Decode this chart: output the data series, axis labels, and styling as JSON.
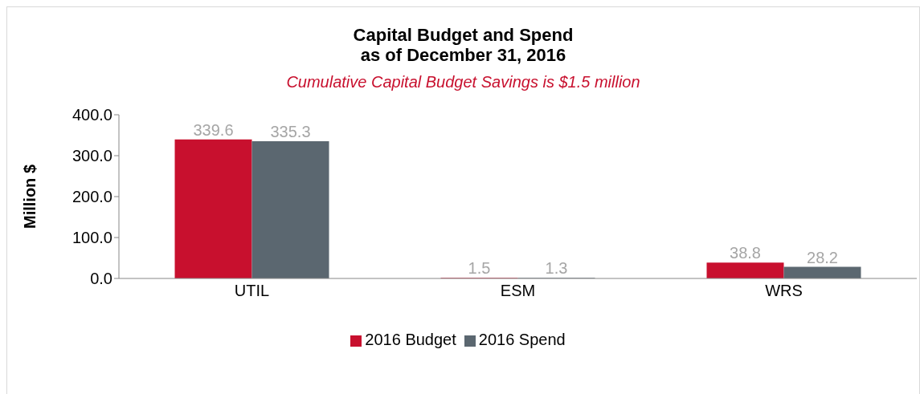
{
  "chart_data": {
    "type": "bar",
    "title": "Capital Budget and Spend\nas of December 31, 2016",
    "subtitle": "Cumulative Capital Budget Savings is $1.5 million",
    "ylabel": "Million $",
    "categories": [
      "UTIL",
      "ESM",
      "WRS"
    ],
    "series": [
      {
        "name": "2016 Budget",
        "color": "#c8102e",
        "values": [
          339.6,
          1.5,
          38.8
        ]
      },
      {
        "name": "2016 Spend",
        "color": "#5b6770",
        "values": [
          335.3,
          1.3,
          28.2
        ]
      }
    ],
    "ylim": [
      0,
      400
    ],
    "yticks": [
      {
        "value": 0,
        "label": "0.0"
      },
      {
        "value": 100,
        "label": "100.0"
      },
      {
        "value": 200,
        "label": "200.0"
      },
      {
        "value": 300,
        "label": "300.0"
      },
      {
        "value": 400,
        "label": "400.0"
      }
    ],
    "data_labels": true,
    "grid": false,
    "legend": "bottom"
  }
}
